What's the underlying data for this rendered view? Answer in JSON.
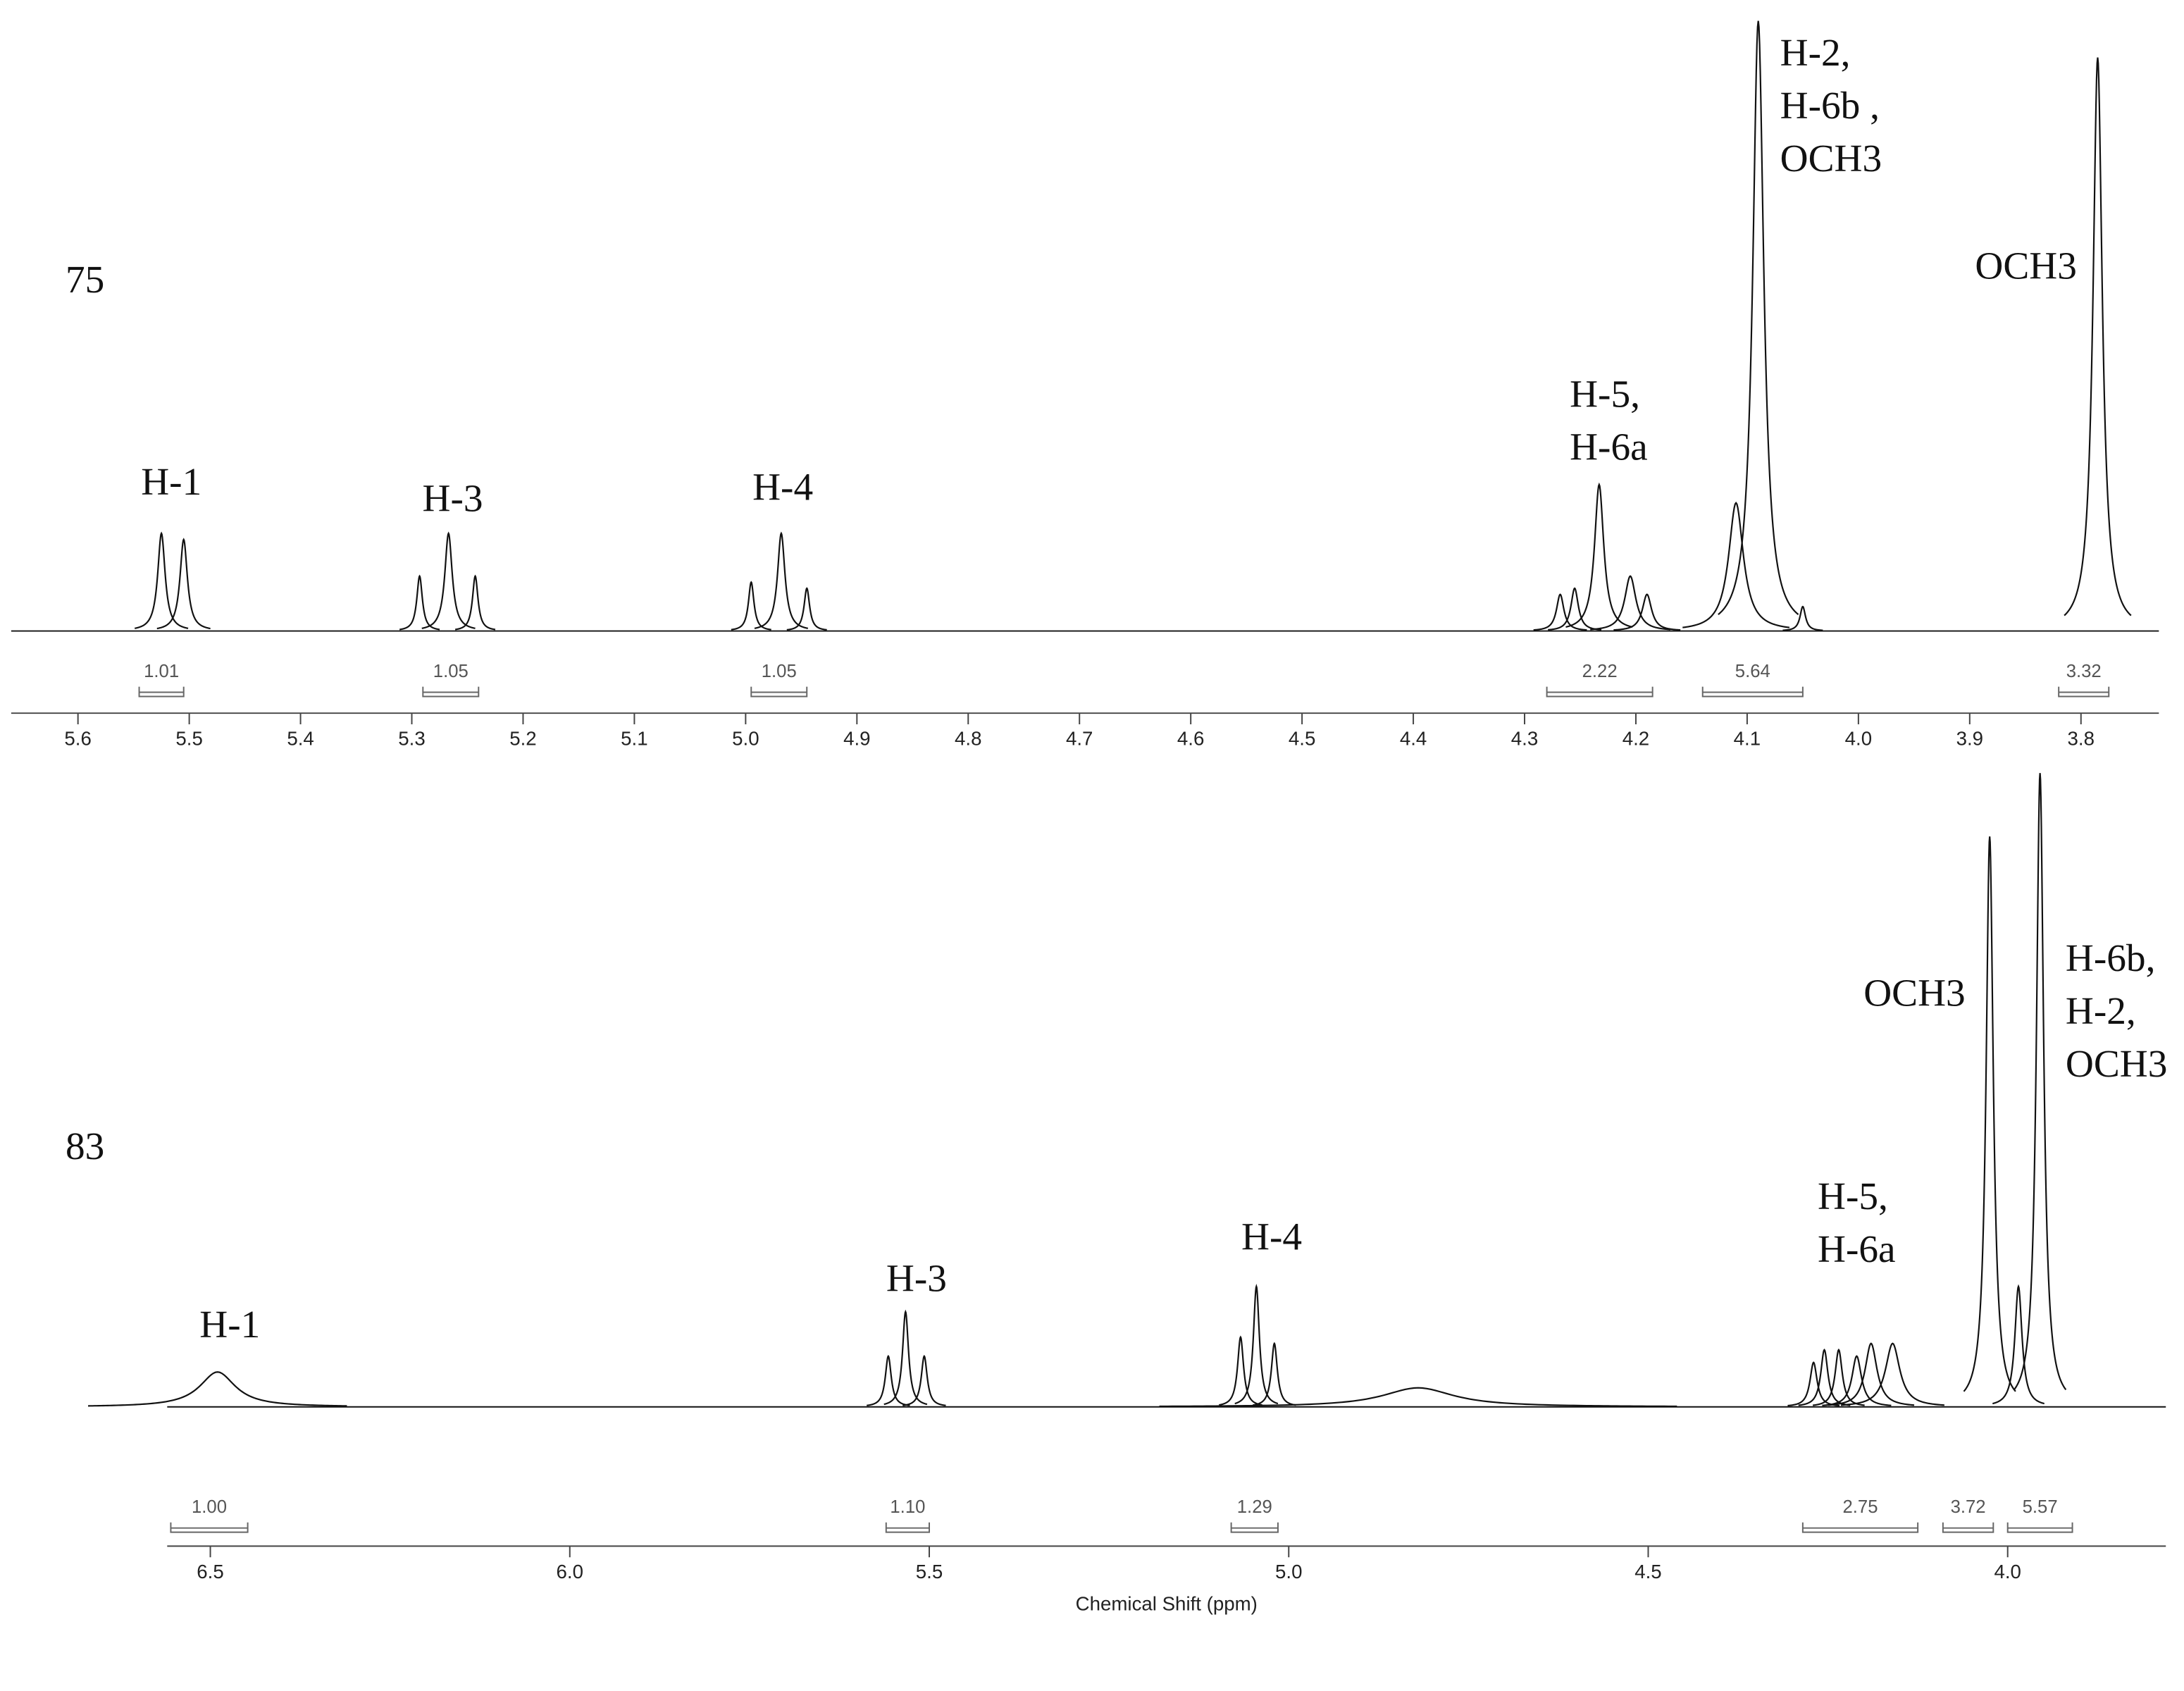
{
  "chart_data": [
    {
      "type": "spectrum",
      "label": "75",
      "xlim": [
        5.66,
        3.73
      ],
      "ylim": [
        0,
        100
      ],
      "xticks": [
        5.6,
        5.5,
        5.4,
        5.3,
        5.2,
        5.1,
        {
          "value": 5,
          "label": "5.0"
        },
        4.9,
        4.8,
        4.7,
        4.6,
        4.5,
        4.4,
        4.3,
        4.2,
        4.1,
        {
          "value": 4,
          "label": "4.0"
        },
        3.9,
        3.8
      ],
      "color": "#111111",
      "peaks": {
        "positions": [
          5.525,
          5.505,
          5.293,
          5.267,
          5.243,
          4.995,
          4.968,
          4.945,
          4.268,
          4.255,
          4.233,
          4.205,
          4.19,
          4.11,
          4.09,
          4.05,
          3.785
        ],
        "heights": [
          16,
          15,
          9,
          16,
          9,
          8,
          16,
          7,
          6,
          7,
          24,
          9,
          6,
          21,
          100,
          4,
          94
        ],
        "widths": [
          0.004,
          0.004,
          0.003,
          0.004,
          0.003,
          0.003,
          0.004,
          0.003,
          0.004,
          0.004,
          0.005,
          0.006,
          0.005,
          0.008,
          0.006,
          0.003,
          0.005
        ]
      },
      "integrals": {
        "ranges": [
          [
            5.545,
            5.505
          ],
          [
            5.29,
            5.24
          ],
          [
            4.995,
            4.945
          ],
          [
            4.28,
            4.185
          ],
          [
            4.14,
            4.05
          ],
          [
            3.82,
            3.775
          ]
        ],
        "values": [
          1.01,
          1.05,
          1.05,
          2.22,
          5.64,
          3.32
        ],
        "value_labels": [
          "1.01",
          "1.05",
          "1.05",
          "2.22",
          "5.64",
          "3.32"
        ]
      },
      "annotations": [
        [
          "H-1"
        ],
        [
          "H-3"
        ],
        [
          "H-4"
        ],
        [
          "H-5,",
          "H-6a"
        ],
        [
          "H-2,",
          "H-6b ,",
          "OCH3"
        ],
        [
          "OCH3"
        ]
      ]
    },
    {
      "type": "spectrum",
      "label": "83",
      "xlabel": "Chemical Shift (ppm)",
      "xlim": [
        6.56,
        3.78
      ],
      "ylim": [
        0,
        100
      ],
      "xticks": [
        6.5,
        {
          "value": 6,
          "label": "6.0"
        },
        5.5,
        {
          "value": 5,
          "label": "5.0"
        },
        4.5,
        {
          "value": 4,
          "label": "4.0"
        }
      ],
      "color": "#111111",
      "peaks": {
        "positions": [
          6.49,
          5.557,
          5.533,
          5.507,
          5.067,
          5.045,
          5.02,
          4.82,
          4.27,
          4.255,
          4.235,
          4.21,
          4.19,
          4.16,
          4.025,
          3.985,
          3.955
        ],
        "heights": [
          5.5,
          8,
          15,
          8,
          11,
          19,
          10,
          3,
          7,
          9,
          9,
          8,
          10,
          10,
          90,
          19,
          100
        ],
        "widths": [
          0.03,
          0.005,
          0.005,
          0.005,
          0.005,
          0.005,
          0.005,
          0.06,
          0.006,
          0.006,
          0.006,
          0.008,
          0.01,
          0.012,
          0.006,
          0.006,
          0.006
        ]
      },
      "integrals": {
        "ranges": [
          [
            6.555,
            6.448
          ],
          [
            5.56,
            5.5
          ],
          [
            5.08,
            5.015
          ],
          [
            4.285,
            4.125
          ],
          [
            4.09,
            4.02
          ],
          [
            4.0,
            3.91
          ]
        ],
        "values": [
          1,
          1.1,
          1.29,
          2.75,
          3.72,
          5.57
        ],
        "value_labels": [
          "1.00",
          "1.10",
          "1.29",
          "2.75",
          "3.72",
          "5.57"
        ]
      },
      "annotations": [
        [
          "H-1"
        ],
        [
          "H-3"
        ],
        [
          "H-4"
        ],
        [
          "H-5,",
          "H-6a"
        ],
        [
          "OCH3"
        ],
        [
          "H-6b,",
          "H-2,",
          "OCH3"
        ]
      ]
    }
  ]
}
